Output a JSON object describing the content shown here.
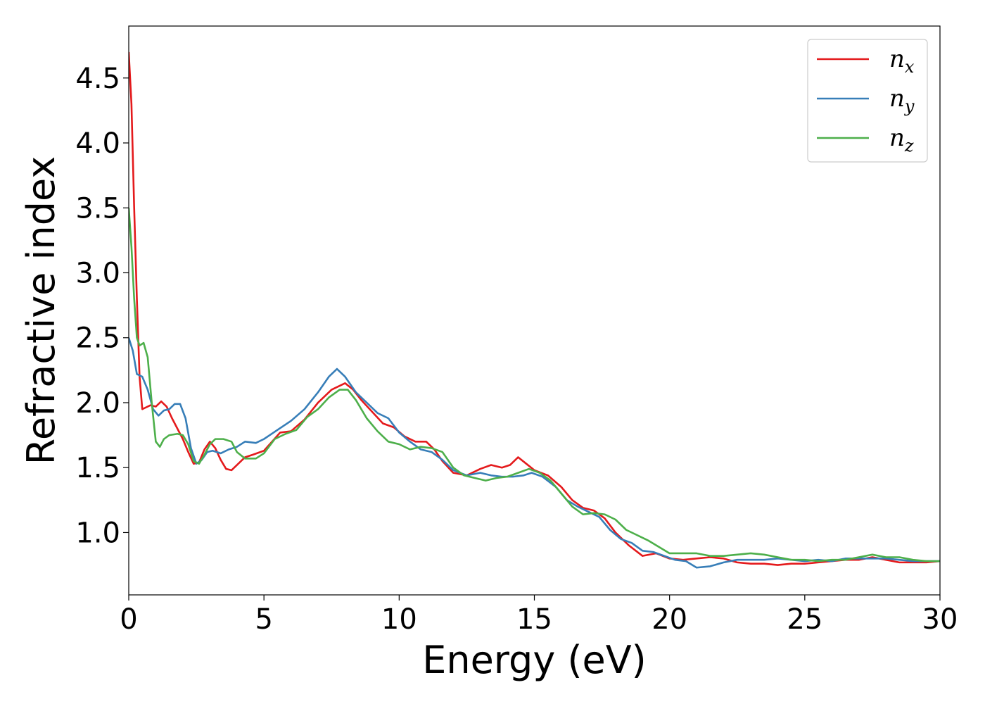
{
  "chart_data": {
    "type": "line",
    "title": "",
    "xlabel": "Energy (eV)",
    "ylabel": "Refractive index",
    "xlim": [
      0,
      30
    ],
    "ylim": [
      0.52,
      4.9
    ],
    "xticks": [
      0,
      5,
      10,
      15,
      20,
      25,
      30
    ],
    "xtick_labels": [
      "0",
      "5",
      "10",
      "15",
      "20",
      "25",
      "30"
    ],
    "yticks": [
      1.0,
      1.5,
      2.0,
      2.5,
      3.0,
      3.5,
      4.0,
      4.5
    ],
    "ytick_labels": [
      "1.0",
      "1.5",
      "2.0",
      "2.5",
      "3.0",
      "3.5",
      "4.0",
      "4.5"
    ],
    "grid": false,
    "legend_position": "top-right",
    "series": [
      {
        "name": "n_x",
        "legend_base": "n",
        "legend_sub": "x",
        "color": "#e41a1c",
        "points": [
          [
            0,
            4.7
          ],
          [
            0.1,
            4.3
          ],
          [
            0.2,
            3.5
          ],
          [
            0.3,
            2.8
          ],
          [
            0.4,
            2.2
          ],
          [
            0.5,
            1.95
          ],
          [
            0.6,
            1.96
          ],
          [
            0.8,
            1.98
          ],
          [
            1.0,
            1.97
          ],
          [
            1.2,
            2.01
          ],
          [
            1.4,
            1.97
          ],
          [
            1.6,
            1.88
          ],
          [
            1.8,
            1.8
          ],
          [
            2.0,
            1.72
          ],
          [
            2.2,
            1.62
          ],
          [
            2.4,
            1.53
          ],
          [
            2.6,
            1.54
          ],
          [
            2.8,
            1.64
          ],
          [
            3.0,
            1.7
          ],
          [
            3.2,
            1.65
          ],
          [
            3.4,
            1.56
          ],
          [
            3.6,
            1.49
          ],
          [
            3.8,
            1.48
          ],
          [
            4.0,
            1.52
          ],
          [
            4.3,
            1.58
          ],
          [
            4.6,
            1.6
          ],
          [
            5.0,
            1.63
          ],
          [
            5.3,
            1.7
          ],
          [
            5.6,
            1.77
          ],
          [
            6.0,
            1.78
          ],
          [
            6.5,
            1.87
          ],
          [
            7.0,
            2.0
          ],
          [
            7.5,
            2.1
          ],
          [
            8.0,
            2.15
          ],
          [
            8.3,
            2.1
          ],
          [
            8.6,
            2.02
          ],
          [
            9.0,
            1.93
          ],
          [
            9.4,
            1.84
          ],
          [
            9.8,
            1.81
          ],
          [
            10.2,
            1.74
          ],
          [
            10.6,
            1.7
          ],
          [
            11.0,
            1.7
          ],
          [
            11.3,
            1.64
          ],
          [
            11.6,
            1.55
          ],
          [
            12.0,
            1.46
          ],
          [
            12.5,
            1.44
          ],
          [
            13.0,
            1.49
          ],
          [
            13.4,
            1.52
          ],
          [
            13.8,
            1.5
          ],
          [
            14.1,
            1.52
          ],
          [
            14.4,
            1.58
          ],
          [
            14.7,
            1.53
          ],
          [
            15.0,
            1.48
          ],
          [
            15.5,
            1.44
          ],
          [
            16.0,
            1.35
          ],
          [
            16.4,
            1.25
          ],
          [
            16.8,
            1.19
          ],
          [
            17.2,
            1.17
          ],
          [
            17.6,
            1.11
          ],
          [
            18.0,
            1.0
          ],
          [
            18.5,
            0.9
          ],
          [
            19.0,
            0.82
          ],
          [
            19.5,
            0.84
          ],
          [
            20.0,
            0.8
          ],
          [
            20.5,
            0.79
          ],
          [
            21.0,
            0.8
          ],
          [
            21.5,
            0.81
          ],
          [
            22.0,
            0.8
          ],
          [
            22.5,
            0.77
          ],
          [
            23.0,
            0.76
          ],
          [
            23.5,
            0.76
          ],
          [
            24.0,
            0.75
          ],
          [
            24.5,
            0.76
          ],
          [
            25.0,
            0.76
          ],
          [
            25.5,
            0.77
          ],
          [
            26.0,
            0.78
          ],
          [
            26.5,
            0.79
          ],
          [
            27.0,
            0.79
          ],
          [
            27.5,
            0.81
          ],
          [
            28.0,
            0.79
          ],
          [
            28.5,
            0.77
          ],
          [
            29.0,
            0.77
          ],
          [
            29.5,
            0.77
          ],
          [
            30.0,
            0.78
          ]
        ]
      },
      {
        "name": "n_y",
        "legend_base": "n",
        "legend_sub": "y",
        "color": "#377eb8",
        "points": [
          [
            0,
            2.5
          ],
          [
            0.15,
            2.4
          ],
          [
            0.3,
            2.22
          ],
          [
            0.5,
            2.2
          ],
          [
            0.7,
            2.1
          ],
          [
            0.9,
            1.95
          ],
          [
            1.1,
            1.9
          ],
          [
            1.3,
            1.94
          ],
          [
            1.5,
            1.95
          ],
          [
            1.7,
            1.99
          ],
          [
            1.9,
            1.99
          ],
          [
            2.1,
            1.88
          ],
          [
            2.3,
            1.65
          ],
          [
            2.5,
            1.53
          ],
          [
            2.7,
            1.56
          ],
          [
            2.9,
            1.62
          ],
          [
            3.1,
            1.63
          ],
          [
            3.4,
            1.61
          ],
          [
            3.7,
            1.64
          ],
          [
            4.0,
            1.66
          ],
          [
            4.3,
            1.7
          ],
          [
            4.7,
            1.69
          ],
          [
            5.0,
            1.72
          ],
          [
            5.5,
            1.79
          ],
          [
            6.0,
            1.86
          ],
          [
            6.5,
            1.95
          ],
          [
            7.0,
            2.08
          ],
          [
            7.4,
            2.2
          ],
          [
            7.7,
            2.26
          ],
          [
            8.0,
            2.2
          ],
          [
            8.4,
            2.08
          ],
          [
            8.8,
            2.0
          ],
          [
            9.2,
            1.92
          ],
          [
            9.6,
            1.88
          ],
          [
            10.0,
            1.77
          ],
          [
            10.4,
            1.7
          ],
          [
            10.8,
            1.64
          ],
          [
            11.2,
            1.62
          ],
          [
            11.6,
            1.56
          ],
          [
            12.0,
            1.48
          ],
          [
            12.5,
            1.44
          ],
          [
            13.0,
            1.46
          ],
          [
            13.4,
            1.44
          ],
          [
            13.8,
            1.43
          ],
          [
            14.2,
            1.43
          ],
          [
            14.6,
            1.44
          ],
          [
            14.9,
            1.46
          ],
          [
            15.3,
            1.43
          ],
          [
            15.8,
            1.35
          ],
          [
            16.2,
            1.25
          ],
          [
            16.6,
            1.2
          ],
          [
            17.0,
            1.16
          ],
          [
            17.4,
            1.12
          ],
          [
            17.8,
            1.02
          ],
          [
            18.2,
            0.95
          ],
          [
            18.6,
            0.92
          ],
          [
            19.0,
            0.86
          ],
          [
            19.4,
            0.85
          ],
          [
            19.8,
            0.82
          ],
          [
            20.2,
            0.79
          ],
          [
            20.6,
            0.78
          ],
          [
            21.0,
            0.73
          ],
          [
            21.5,
            0.74
          ],
          [
            22.0,
            0.77
          ],
          [
            22.5,
            0.79
          ],
          [
            23.0,
            0.79
          ],
          [
            23.5,
            0.79
          ],
          [
            24.0,
            0.8
          ],
          [
            24.5,
            0.79
          ],
          [
            25.0,
            0.78
          ],
          [
            25.5,
            0.79
          ],
          [
            26.0,
            0.78
          ],
          [
            26.5,
            0.8
          ],
          [
            27.0,
            0.8
          ],
          [
            27.5,
            0.8
          ],
          [
            28.0,
            0.8
          ],
          [
            28.5,
            0.79
          ],
          [
            29.0,
            0.78
          ],
          [
            29.5,
            0.78
          ],
          [
            30.0,
            0.78
          ]
        ]
      },
      {
        "name": "n_z",
        "legend_base": "n",
        "legend_sub": "z",
        "color": "#4daf4a",
        "points": [
          [
            0,
            3.5
          ],
          [
            0.1,
            3.2
          ],
          [
            0.2,
            2.8
          ],
          [
            0.3,
            2.5
          ],
          [
            0.4,
            2.44
          ],
          [
            0.55,
            2.46
          ],
          [
            0.7,
            2.35
          ],
          [
            0.85,
            2.0
          ],
          [
            1.0,
            1.7
          ],
          [
            1.15,
            1.66
          ],
          [
            1.3,
            1.72
          ],
          [
            1.5,
            1.75
          ],
          [
            1.8,
            1.76
          ],
          [
            2.0,
            1.75
          ],
          [
            2.2,
            1.68
          ],
          [
            2.4,
            1.55
          ],
          [
            2.6,
            1.53
          ],
          [
            2.8,
            1.6
          ],
          [
            3.0,
            1.68
          ],
          [
            3.2,
            1.72
          ],
          [
            3.5,
            1.72
          ],
          [
            3.8,
            1.7
          ],
          [
            4.0,
            1.62
          ],
          [
            4.3,
            1.57
          ],
          [
            4.7,
            1.57
          ],
          [
            5.0,
            1.61
          ],
          [
            5.4,
            1.72
          ],
          [
            5.8,
            1.76
          ],
          [
            6.2,
            1.79
          ],
          [
            6.6,
            1.89
          ],
          [
            7.0,
            1.95
          ],
          [
            7.4,
            2.04
          ],
          [
            7.8,
            2.1
          ],
          [
            8.1,
            2.1
          ],
          [
            8.4,
            2.02
          ],
          [
            8.8,
            1.88
          ],
          [
            9.2,
            1.78
          ],
          [
            9.6,
            1.7
          ],
          [
            10.0,
            1.68
          ],
          [
            10.4,
            1.64
          ],
          [
            10.8,
            1.66
          ],
          [
            11.2,
            1.65
          ],
          [
            11.6,
            1.62
          ],
          [
            12.0,
            1.5
          ],
          [
            12.4,
            1.44
          ],
          [
            12.8,
            1.42
          ],
          [
            13.2,
            1.4
          ],
          [
            13.6,
            1.42
          ],
          [
            14.0,
            1.43
          ],
          [
            14.4,
            1.46
          ],
          [
            14.8,
            1.49
          ],
          [
            15.2,
            1.46
          ],
          [
            15.6,
            1.4
          ],
          [
            16.0,
            1.3
          ],
          [
            16.4,
            1.2
          ],
          [
            16.8,
            1.14
          ],
          [
            17.2,
            1.15
          ],
          [
            17.6,
            1.14
          ],
          [
            18.0,
            1.1
          ],
          [
            18.4,
            1.02
          ],
          [
            18.8,
            0.98
          ],
          [
            19.2,
            0.94
          ],
          [
            19.6,
            0.89
          ],
          [
            20.0,
            0.84
          ],
          [
            20.5,
            0.84
          ],
          [
            21.0,
            0.84
          ],
          [
            21.5,
            0.82
          ],
          [
            22.0,
            0.82
          ],
          [
            22.5,
            0.83
          ],
          [
            23.0,
            0.84
          ],
          [
            23.5,
            0.83
          ],
          [
            24.0,
            0.81
          ],
          [
            24.5,
            0.79
          ],
          [
            25.0,
            0.79
          ],
          [
            25.5,
            0.78
          ],
          [
            26.0,
            0.79
          ],
          [
            26.5,
            0.79
          ],
          [
            27.0,
            0.81
          ],
          [
            27.5,
            0.83
          ],
          [
            28.0,
            0.81
          ],
          [
            28.5,
            0.81
          ],
          [
            29.0,
            0.79
          ],
          [
            29.5,
            0.78
          ],
          [
            30.0,
            0.78
          ]
        ]
      }
    ]
  }
}
